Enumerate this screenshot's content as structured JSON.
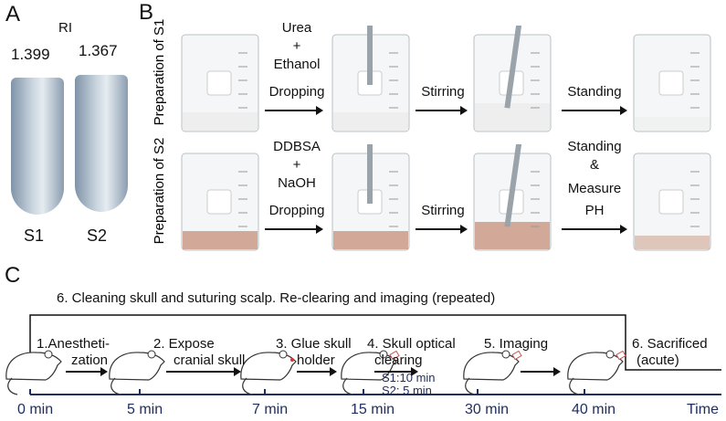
{
  "panelA": {
    "label": "A",
    "ri_title": "RI",
    "samples": [
      {
        "name": "S1",
        "ri": "1.399"
      },
      {
        "name": "S2",
        "ri": "1.367"
      }
    ]
  },
  "panelB": {
    "label": "B",
    "rows": [
      {
        "title": "Preparation of S1",
        "step1": [
          "Urea",
          "+",
          "Ethanol",
          "Dropping"
        ],
        "step2": "Stirring",
        "step3": [
          "Standing"
        ],
        "liquid": "#ececec"
      },
      {
        "title": "Preparation of S2",
        "step1": [
          "DDBSA",
          "+",
          "NaOH",
          "Dropping"
        ],
        "step2": "Stirring",
        "step3": [
          "Standing",
          "&",
          "Measure",
          "PH"
        ],
        "liquid": "#c9957f"
      }
    ]
  },
  "panelC": {
    "label": "C",
    "repeat_label": "6. Cleaning skull and suturing scalp. Re-clearing and imaging (repeated)",
    "steps": [
      {
        "top": "1.Anestheti-",
        "bottom": "zation"
      },
      {
        "top": "2. Expose",
        "bottom": "cranial skull"
      },
      {
        "top": "3. Glue skull",
        "bottom": "holder"
      },
      {
        "top": "4. Skull optical",
        "bottom": "clearing"
      },
      {
        "top": "5. Imaging",
        "bottom": ""
      },
      {
        "top": "6. Sacrificed",
        "bottom": "(acute)"
      }
    ],
    "clearing_times": [
      "S1:10 min",
      "S2: 5 min"
    ],
    "times": [
      "0 min",
      "5 min",
      "7 min",
      "15 min",
      "30 min",
      "40 min",
      "Time"
    ],
    "timeline_color": "#1f2d5c"
  }
}
